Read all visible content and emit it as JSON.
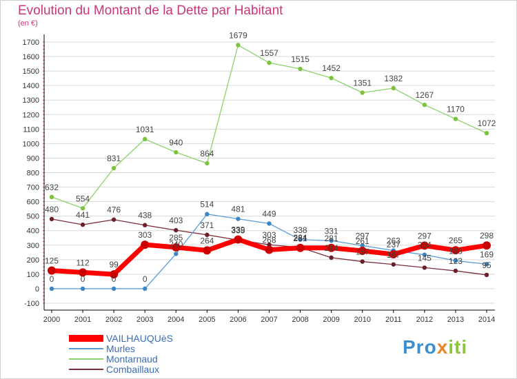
{
  "header": {
    "title": "Evolution du Montant de la Dette par Habitant",
    "unit": "(en €)"
  },
  "logo": {
    "text": "Proxiti"
  },
  "colors": {
    "title": "#c8377a",
    "grid": "#d9d9d9",
    "axis": "#000000",
    "tick_red": "#e8607a",
    "legend_text": "#3a6db5"
  },
  "chart_data": {
    "type": "line",
    "title": "Evolution du Montant de la Dette par Habitant",
    "ylabel": "(en €)",
    "xlabel": "",
    "ylim": [
      -100,
      1700
    ],
    "yticks": [
      -100,
      0,
      100,
      200,
      300,
      400,
      500,
      600,
      700,
      800,
      900,
      1000,
      1100,
      1200,
      1300,
      1400,
      1500,
      1600,
      1700
    ],
    "grid": "horizontal",
    "legend_position": "bottom-left",
    "x": [
      "2000",
      "2001",
      "2002",
      "2003",
      "2004",
      "2005",
      "2006",
      "2007",
      "2008",
      "2009",
      "2010",
      "2011",
      "2012",
      "2013",
      "2014"
    ],
    "series": [
      {
        "name": "Montarnaud",
        "color": "#8cd16a",
        "marker": "#7cc23a",
        "width": 1.3,
        "values": [
          632,
          554,
          831,
          1031,
          940,
          864,
          1679,
          1557,
          1515,
          1452,
          1351,
          1382,
          1267,
          1170,
          1072
        ]
      },
      {
        "name": "Combaillaux",
        "color": "#7a2e3a",
        "marker": "#6a1f2a",
        "width": 1.3,
        "values": [
          480,
          441,
          476,
          438,
          403,
          371,
          335,
          303,
          284,
          214,
          187,
          167,
          145,
          123,
          95
        ]
      },
      {
        "name": "Murles",
        "color": "#5b9bd5",
        "marker": "#3d86c6",
        "width": 1.3,
        "values": [
          0,
          0,
          0,
          0,
          240,
          514,
          481,
          449,
          338,
          331,
          297,
          263,
          234,
          193,
          169
        ]
      },
      {
        "name": "VAILHAUQUèS",
        "color": "#ff0000",
        "marker": "#cc0000",
        "width": 7,
        "values": [
          125,
          112,
          99,
          303,
          285,
          264,
          339,
          268,
          281,
          281,
          261,
          237,
          297,
          265,
          298
        ]
      }
    ],
    "data_labels": {
      "Montarnaud": [
        "632",
        "554",
        "831",
        "1031",
        "940",
        "864",
        "1679",
        "1557",
        "1515",
        "1452",
        "1351",
        "1382",
        "1267",
        "1170",
        "1072"
      ],
      "Combaillaux": [
        "480",
        "441",
        "476",
        "438",
        "403",
        "371",
        "335",
        "303",
        "284",
        "214",
        "187",
        "167",
        "145",
        "123",
        "95"
      ],
      "Murles": [
        "0",
        "0",
        "0",
        "0",
        "240",
        "514",
        "481",
        "449",
        "338",
        "331",
        "297",
        "263",
        "234",
        "193",
        "169"
      ],
      "VAILHAUQUèS": [
        "125",
        "112",
        "99",
        "303",
        "285",
        "264",
        "339",
        "268",
        "281",
        "281",
        "261",
        "237",
        "297",
        "265",
        "298"
      ]
    }
  },
  "legend": {
    "items": [
      {
        "label": "VAILHAUQUèS",
        "color": "#ff0000",
        "thickness": 10
      },
      {
        "label": "Murles",
        "color": "#5b9bd5",
        "thickness": 2
      },
      {
        "label": "Montarnaud",
        "color": "#8cd16a",
        "thickness": 2
      },
      {
        "label": "Combaillaux",
        "color": "#7a2e3a",
        "thickness": 2
      }
    ]
  }
}
